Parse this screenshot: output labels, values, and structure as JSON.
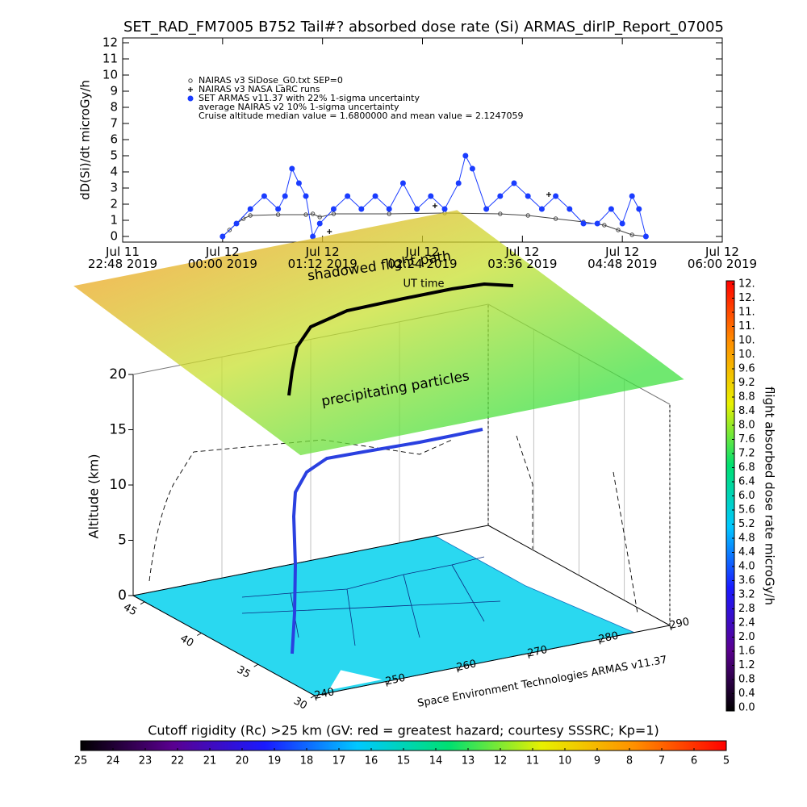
{
  "chart_data": [
    {
      "type": "scatter",
      "title": "SET_RAD_FM7005  B752 Tail#? absorbed dose rate (Si) ARMAS_dirIP_Report_07005",
      "y_label": "dD(Si)/dt microGy/h",
      "xlim": [
        "2019-07-11 22:48",
        "2019-07-12 06:00"
      ],
      "xticks": [
        {
          "value": "2019-07-11 22:48",
          "label": "Jul 11\n22:48 2019"
        },
        {
          "value": "2019-07-12 00:00",
          "label": "Jul 12\n00:00 2019"
        },
        {
          "value": "2019-07-12 01:12",
          "label": "Jul 12\n01:12 2019"
        },
        {
          "value": "2019-07-12 02:24",
          "label": "Jul 12\n02:24 2019"
        },
        {
          "value": "2019-07-12 03:36",
          "label": "Jul 12\n03:36 2019"
        },
        {
          "value": "2019-07-12 04:48",
          "label": "Jul 12\n04:48 2019"
        },
        {
          "value": "2019-07-12 06:00",
          "label": "Jul 12\n06:00 2019"
        }
      ],
      "ylim": [
        -0.35,
        12.3
      ],
      "yticks": [
        0,
        1,
        2,
        3,
        4,
        5,
        6,
        7,
        8,
        9,
        10,
        11,
        12
      ],
      "series": [
        {
          "name": "NAIRAS v3 SiDose_G0.txt SEP=0",
          "color": "#444444",
          "marker": "circle-open",
          "x": [
            "2019-07-12 00:00",
            "2019-07-12 00:05",
            "2019-07-12 00:10",
            "2019-07-12 00:15",
            "2019-07-12 00:20",
            "2019-07-12 00:40",
            "2019-07-12 01:00",
            "2019-07-12 01:05",
            "2019-07-12 01:10",
            "2019-07-12 01:20",
            "2019-07-12 02:00",
            "2019-07-12 02:40",
            "2019-07-12 03:20",
            "2019-07-12 03:40",
            "2019-07-12 04:00",
            "2019-07-12 04:20",
            "2019-07-12 04:35",
            "2019-07-12 04:45",
            "2019-07-12 04:55",
            "2019-07-12 05:05"
          ],
          "values": [
            0,
            0.4,
            0.8,
            1.1,
            1.3,
            1.35,
            1.35,
            1.4,
            1.2,
            1.4,
            1.4,
            1.45,
            1.4,
            1.3,
            1.1,
            0.9,
            0.7,
            0.4,
            0.1,
            0
          ]
        },
        {
          "name": "NAIRAS v3 NASA LaRC runs",
          "color": "#000000",
          "marker": "plus",
          "x": [
            "2019-07-12 01:17",
            "2019-07-12 02:33",
            "2019-07-12 03:55"
          ],
          "values": [
            0.3,
            1.9,
            2.6
          ]
        },
        {
          "name": "SET ARMAS v11.37 with 22% 1-sigma uncertainty",
          "color": "#1a3cff",
          "marker": "circle",
          "x": [
            "2019-07-12 00:00",
            "2019-07-12 00:10",
            "2019-07-12 00:20",
            "2019-07-12 00:30",
            "2019-07-12 00:40",
            "2019-07-12 00:45",
            "2019-07-12 00:50",
            "2019-07-12 00:55",
            "2019-07-12 01:00",
            "2019-07-12 01:05",
            "2019-07-12 01:10",
            "2019-07-12 01:20",
            "2019-07-12 01:30",
            "2019-07-12 01:40",
            "2019-07-12 01:50",
            "2019-07-12 02:00",
            "2019-07-12 02:10",
            "2019-07-12 02:20",
            "2019-07-12 02:30",
            "2019-07-12 02:40",
            "2019-07-12 02:50",
            "2019-07-12 02:55",
            "2019-07-12 03:00",
            "2019-07-12 03:10",
            "2019-07-12 03:20",
            "2019-07-12 03:30",
            "2019-07-12 03:40",
            "2019-07-12 03:50",
            "2019-07-12 04:00",
            "2019-07-12 04:10",
            "2019-07-12 04:20",
            "2019-07-12 04:30",
            "2019-07-12 04:40",
            "2019-07-12 04:48",
            "2019-07-12 04:55",
            "2019-07-12 05:00",
            "2019-07-12 05:05"
          ],
          "values": [
            0,
            0.8,
            1.7,
            2.5,
            1.7,
            2.5,
            4.2,
            3.3,
            2.5,
            0,
            0.8,
            1.7,
            2.5,
            1.7,
            2.5,
            1.7,
            3.3,
            1.7,
            2.5,
            1.7,
            3.3,
            5.0,
            4.2,
            1.7,
            2.5,
            3.3,
            2.5,
            1.7,
            2.5,
            1.7,
            0.8,
            0.8,
            1.7,
            0.8,
            2.5,
            1.7,
            0
          ]
        }
      ],
      "annotations": [
        "average NAIRAS v2 10% 1-sigma uncertainty",
        "Cruise altitude median value = 1.6800000 and mean value = 2.1247059"
      ]
    },
    {
      "type": "surface3d",
      "annotations": [
        "shadowed flight path",
        "UT time",
        "precipitating particles"
      ],
      "z_label": "Altitude (km)",
      "credit": "Space Environment Technologies ARMAS v11.37",
      "xlim": [
        240,
        290
      ],
      "xticks": [
        240,
        250,
        260,
        270,
        280,
        290
      ],
      "ylim": [
        30,
        46
      ],
      "yticks": [
        30,
        35,
        40,
        45
      ],
      "zlim": [
        0,
        20
      ],
      "zticks": [
        0,
        5,
        10,
        15,
        20
      ]
    },
    {
      "type": "colorbar",
      "orientation": "vertical",
      "label": "flight absorbed dose rate microGy/h",
      "colormap": [
        "#000000",
        "#5a0090",
        "#1a1aff",
        "#00c8ff",
        "#00e070",
        "#e8f000",
        "#ff9000",
        "#ff0000"
      ],
      "ylim": [
        0,
        12
      ],
      "yticks": [
        {
          "value": 0,
          "label": "0.0"
        },
        0.4,
        0.8,
        1.2,
        1.6,
        {
          "value": 2,
          "label": "2.0"
        },
        2.4,
        2.8,
        3.2,
        3.6,
        {
          "value": 4,
          "label": "4.0"
        },
        4.4,
        4.8,
        5.2,
        5.6,
        {
          "value": 6,
          "label": "6.0"
        },
        6.4,
        6.8,
        7.2,
        7.6,
        {
          "value": 8,
          "label": "8.0"
        },
        8.4,
        8.8,
        9.2,
        9.6,
        {
          "value": 10,
          "label": "10."
        },
        {
          "value": 10.4,
          "label": "10."
        },
        {
          "value": 10.8,
          "label": "11."
        },
        {
          "value": 11.2,
          "label": "11."
        },
        {
          "value": 11.6,
          "label": "12."
        },
        {
          "value": 12,
          "label": "12."
        }
      ]
    },
    {
      "type": "colorbar",
      "orientation": "horizontal",
      "title": "Cutoff rigidity (Rc) >25 km (GV: red = greatest hazard; courtesy SSSRC; Kp=1)",
      "colormap": [
        "#000000",
        "#5a0090",
        "#1a1aff",
        "#00c8ff",
        "#00e070",
        "#e8f000",
        "#ff9000",
        "#ff0000"
      ],
      "xlim": [
        25,
        5
      ],
      "xticks": [
        25,
        24,
        23,
        22,
        21,
        20,
        19,
        18,
        17,
        16,
        15,
        14,
        13,
        12,
        11,
        10,
        9,
        8,
        7,
        6,
        5
      ]
    }
  ]
}
